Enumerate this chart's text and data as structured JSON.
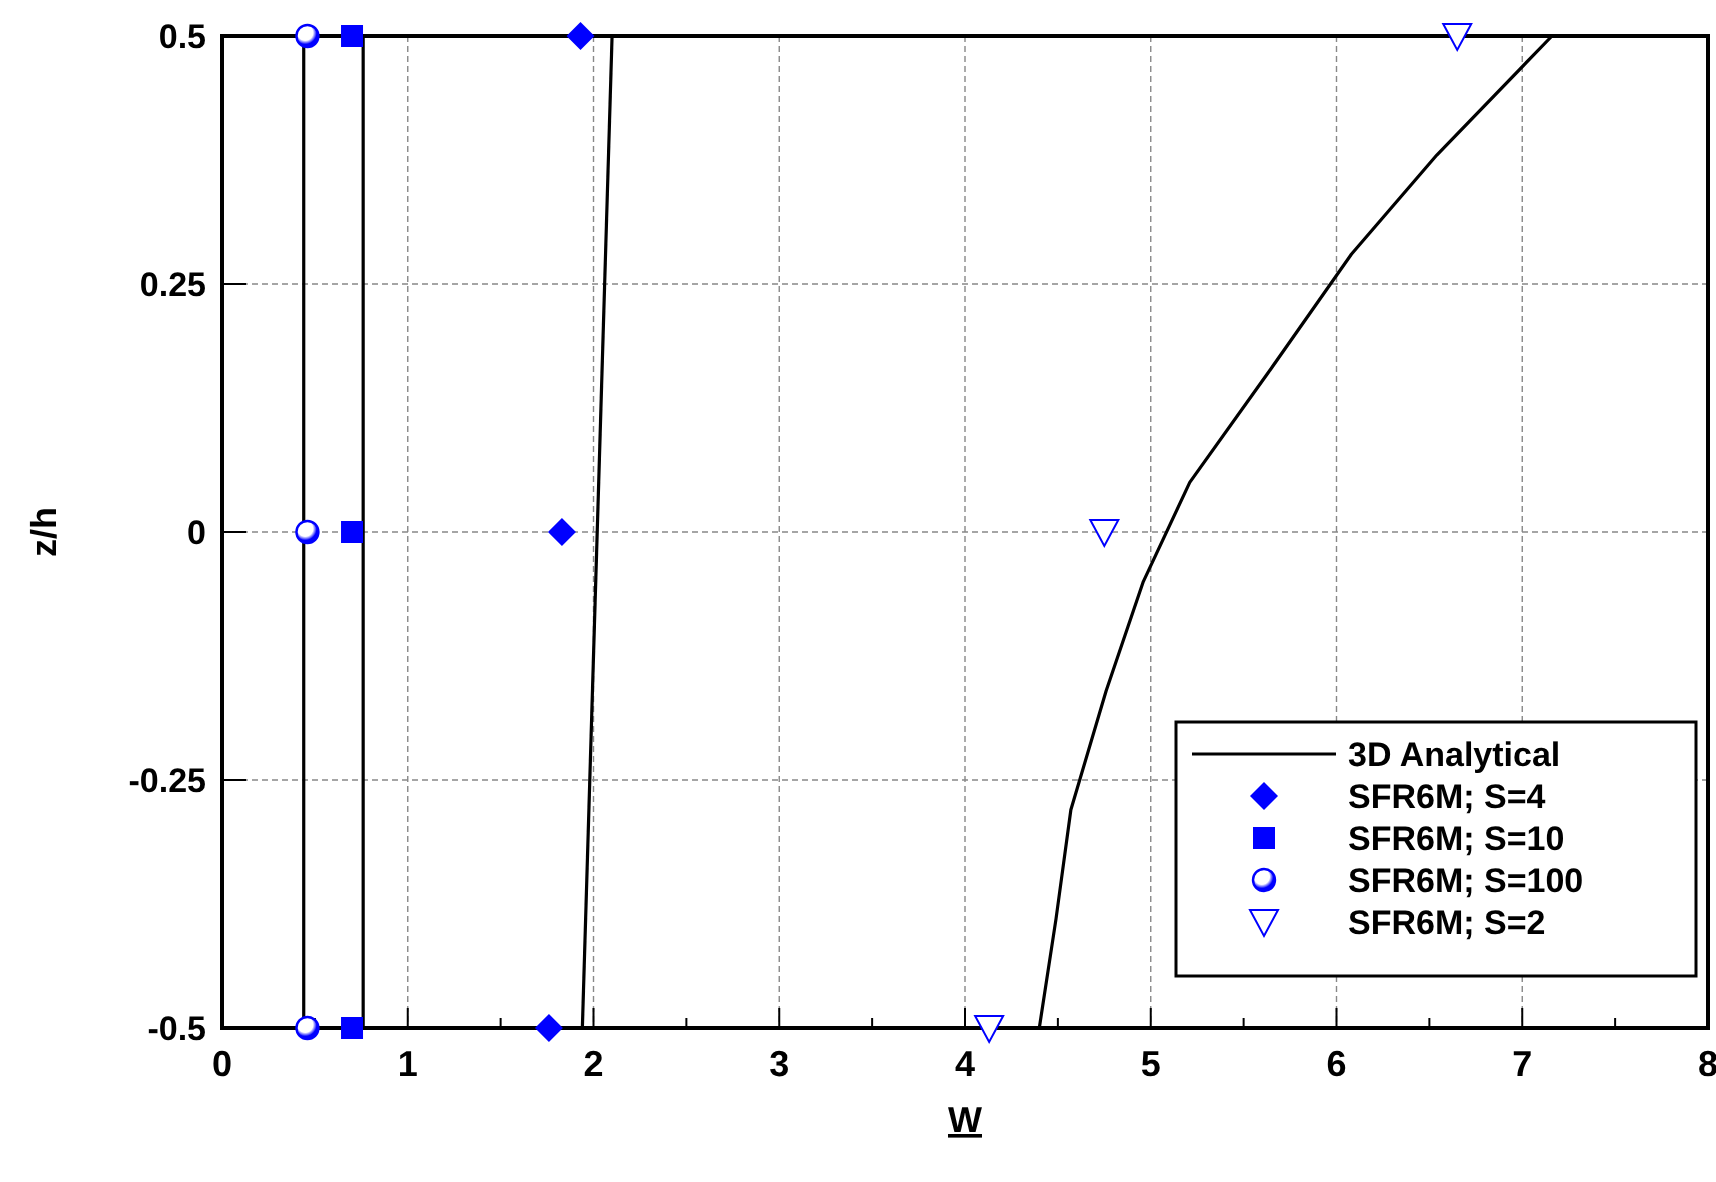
{
  "chart_data": {
    "type": "scatter",
    "xlabel": "W",
    "ylabel": "z/h",
    "xlim": [
      0,
      8
    ],
    "ylim": [
      -0.5,
      0.5
    ],
    "xticks": [
      0,
      1,
      2,
      3,
      4,
      5,
      6,
      7,
      8
    ],
    "yticks": [
      -0.5,
      -0.25,
      0,
      0.25,
      0.5
    ],
    "grid": true,
    "legend": "bottom right",
    "series": [
      {
        "name": "3D Analytical",
        "type": "line",
        "color": "#000000",
        "marker": "none",
        "line_style": "solid",
        "x": [
          4.4,
          4.49,
          4.57,
          4.76,
          4.96,
          5.21,
          5.63,
          6.08,
          6.54,
          7.16
        ],
        "values": [
          -0.5,
          -0.39,
          -0.28,
          -0.16,
          -0.05,
          0.05,
          0.16,
          0.28,
          0.38,
          0.5
        ]
      },
      {
        "type": "line",
        "color": "#000000",
        "marker": "none",
        "line_style": "solid",
        "x": [
          1.94,
          2.1
        ],
        "values": [
          -0.5,
          0.5
        ]
      },
      {
        "type": "line",
        "color": "#000000",
        "marker": "none",
        "line_style": "solid",
        "x": [
          0.76,
          0.76
        ],
        "values": [
          -0.5,
          0.5
        ]
      },
      {
        "type": "line",
        "color": "#000000",
        "marker": "none",
        "line_style": "solid",
        "x": [
          0.44,
          0.44
        ],
        "values": [
          -0.5,
          0.5
        ]
      },
      {
        "name": "SFR6M; S=4",
        "color": "#0000ff",
        "marker": "diamond",
        "x": [
          1.76,
          1.83,
          1.93
        ],
        "values": [
          -0.5,
          0,
          0.5
        ]
      },
      {
        "name": "SFR6M; S=10",
        "color": "#0000ff",
        "marker": "square",
        "x": [
          0.7,
          0.7,
          0.7
        ],
        "values": [
          -0.5,
          0,
          0.5
        ]
      },
      {
        "name": "SFR6M; S=100",
        "color": "#0000ff",
        "marker": "circle",
        "x": [
          0.46,
          0.46,
          0.46
        ],
        "values": [
          -0.5,
          0,
          0.5
        ]
      },
      {
        "name": "SFR6M; S=2",
        "color": "#0000ff",
        "marker": "triangle",
        "x": [
          4.13,
          4.75,
          6.65
        ],
        "values": [
          -0.5,
          0,
          0.5
        ]
      }
    ]
  }
}
